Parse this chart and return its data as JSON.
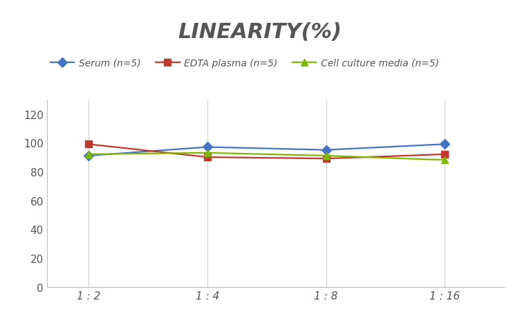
{
  "title": "LINEARITY(%)",
  "x_labels": [
    "1 : 2",
    "1 : 4",
    "1 : 8",
    "1 : 16"
  ],
  "x_positions": [
    0,
    1,
    2,
    3
  ],
  "series": [
    {
      "name": "Serum (n=5)",
      "values": [
        91,
        97,
        95,
        99
      ],
      "color": "#4472C4",
      "marker": "D",
      "markersize": 7,
      "linewidth": 1.6
    },
    {
      "name": "EDTA plasma (n=5)",
      "values": [
        99,
        90,
        89,
        92
      ],
      "color": "#C0392B",
      "marker": "s",
      "markersize": 7,
      "linewidth": 1.6
    },
    {
      "name": "Cell culture media (n=5)",
      "values": [
        92,
        93,
        91,
        88
      ],
      "color": "#7FB800",
      "marker": "^",
      "markersize": 7,
      "linewidth": 1.6
    }
  ],
  "ylim": [
    0,
    130
  ],
  "yticks": [
    0,
    20,
    40,
    60,
    80,
    100,
    120
  ],
  "background_color": "#ffffff",
  "title_fontsize": 22,
  "title_color": "#555555",
  "legend_fontsize": 10,
  "tick_fontsize": 11,
  "grid_color": "#d0d0d0",
  "grid_linewidth": 0.8
}
